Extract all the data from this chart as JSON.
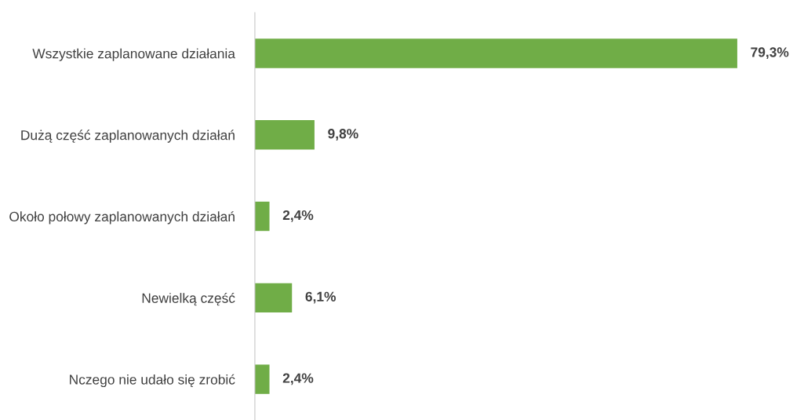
{
  "chart_data": {
    "type": "bar",
    "orientation": "horizontal",
    "categories": [
      "Wszystkie zaplanowane działania",
      "Dużą część zaplanowanych działań",
      "Około połowy zaplanowanych działań",
      "Newielką część",
      "Nczego nie udało się zrobić"
    ],
    "values": [
      79.3,
      9.8,
      2.4,
      6.1,
      2.4
    ],
    "value_labels": [
      "79,3%",
      "9,8%",
      "2,4%",
      "6,1%",
      "2,4%"
    ],
    "color": "#70ad47",
    "grid": false,
    "legend": false
  }
}
